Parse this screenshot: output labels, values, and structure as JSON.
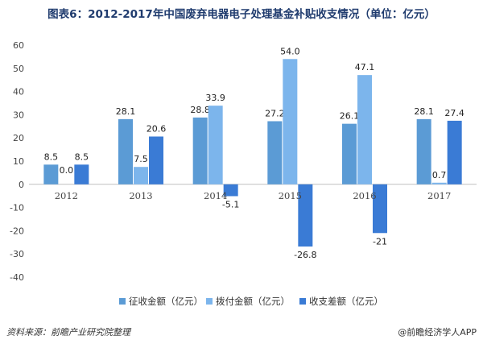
{
  "title": "图表6：2012-2017年中国废弃电器电子处理基金补贴收支情况（单位：亿元）",
  "source": "资料来源：前瞻产业研究院整理",
  "brand": "@前瞻经济学人APP",
  "chart_data": {
    "type": "bar",
    "categories": [
      "2012",
      "2013",
      "2014",
      "2015",
      "2016",
      "2017"
    ],
    "series": [
      {
        "name": "征收金额（亿元）",
        "color": "#5b9bd5",
        "values": [
          8.5,
          28.1,
          28.8,
          27.2,
          26.1,
          28.1
        ]
      },
      {
        "name": "拨付金额（亿元）",
        "color": "#7cb5ec",
        "values": [
          0.0,
          7.5,
          33.9,
          54.0,
          47.1,
          0.7
        ]
      },
      {
        "name": "收支差额（亿元）",
        "color": "#3a7bd5",
        "values": [
          8.5,
          20.6,
          -5.1,
          -26.8,
          -21,
          27.4
        ]
      }
    ],
    "value_labels": [
      [
        "8.5",
        "28.1",
        "28.8",
        "27.2",
        "26.1",
        "28.1"
      ],
      [
        "0.0",
        "7.5",
        "33.9",
        "54.0",
        "47.1",
        "0.7"
      ],
      [
        "8.5",
        "20.6",
        "-5.1",
        "-26.8",
        "-21",
        "27.4"
      ]
    ],
    "ylim": [
      -40,
      60
    ],
    "yticks": [
      "-40",
      "-30",
      "-20",
      "-10",
      "0",
      "10",
      "20",
      "30",
      "40",
      "50",
      "60"
    ],
    "xlabel": "",
    "ylabel": "",
    "grid": false,
    "legend_position": "bottom"
  }
}
